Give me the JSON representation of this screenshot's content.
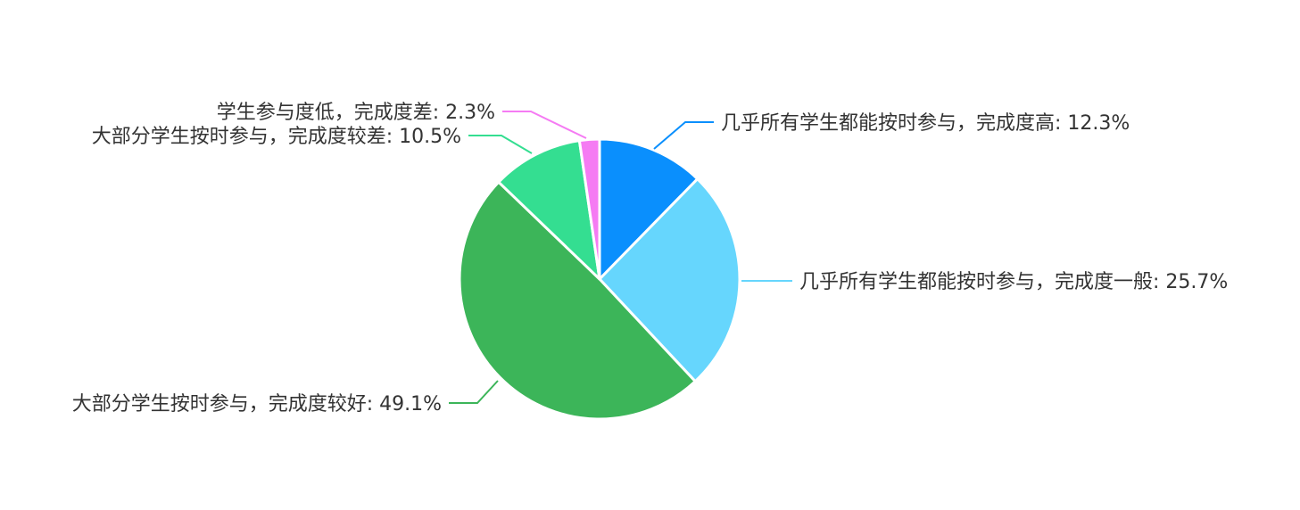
{
  "chart_data": {
    "type": "pie",
    "title": "",
    "slices": [
      {
        "label": "几乎所有学生都能按时参与，完成度高",
        "value": 12.3,
        "display": "12.3%",
        "color": "#0a8ffd"
      },
      {
        "label": "几乎所有学生都能按时参与，完成度一般",
        "value": 25.7,
        "display": "25.7%",
        "color": "#66d6fd"
      },
      {
        "label": "大部分学生按时参与，完成度较好",
        "value": 49.1,
        "display": "49.1%",
        "color": "#3cb559"
      },
      {
        "label": "大部分学生按时参与，完成度较差",
        "value": 10.5,
        "display": "10.5%",
        "color": "#34de91"
      },
      {
        "label": "学生参与度低，完成度差",
        "value": 2.3,
        "display": "2.3%",
        "color": "#f57bf3"
      }
    ],
    "start_angle": "12 o'clock",
    "direction": "clockwise",
    "label_style": "outside with leader lines"
  }
}
